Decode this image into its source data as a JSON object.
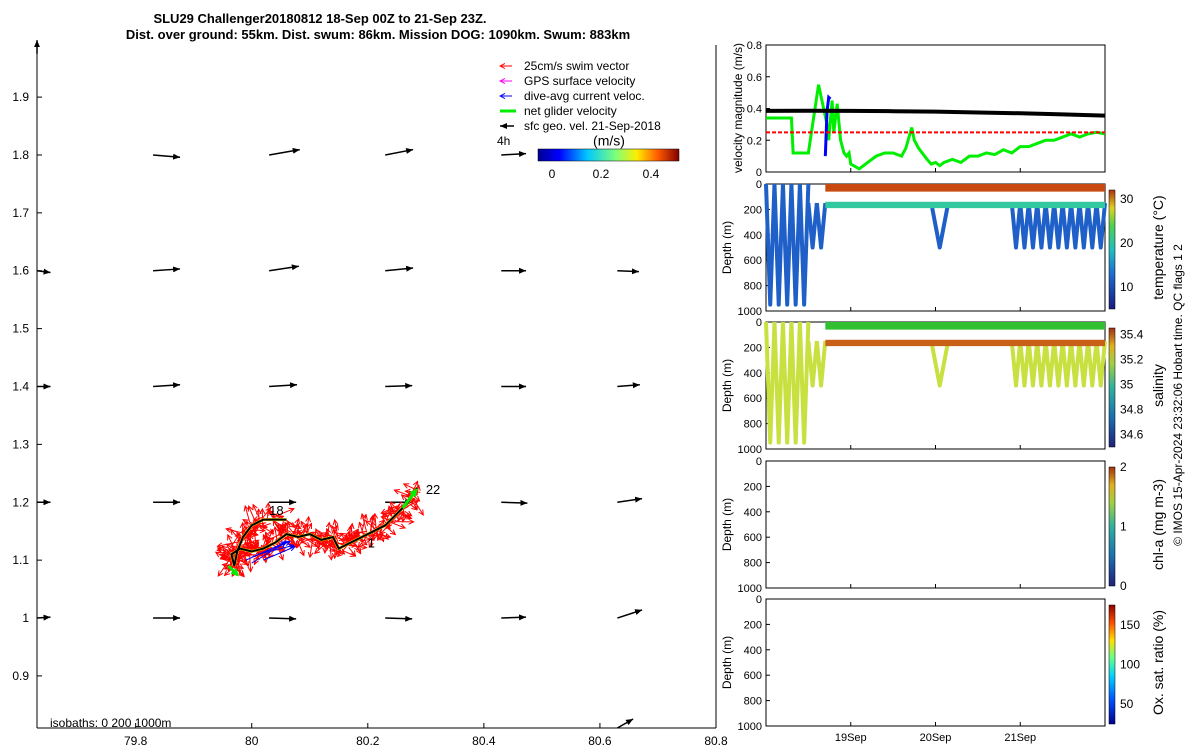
{
  "title": {
    "line1": "SLU29 Challenger20180812 18-Sep 00Z to 21-Sep 23Z.",
    "line2": "Dist. over ground: 55km. Dist. swum: 86km. Mission DOG: 1090km. Swum: 883km"
  },
  "credit": "© IMOS 15-Apr-2024 23:32:06 Hobart time. QC flags 1  2",
  "colors": {
    "swim": "#ff0000",
    "gps": "#ff00ff",
    "current": "#0000ff",
    "net": "#00ee00",
    "geo": "#000000",
    "track": "#000000",
    "track_seg": "#e8d000"
  },
  "chart_data": [
    {
      "id": "map",
      "type": "scatter",
      "x_ticks": [
        "79.8",
        "80",
        "80.2",
        "80.4",
        "80.6",
        "80.8"
      ],
      "y_ticks": [
        "0.9",
        "1",
        "1.1",
        "1.2",
        "1.3",
        "1.4",
        "1.5",
        "1.6",
        "1.7",
        "1.8",
        "1.9"
      ],
      "xlim": [
        79.63,
        80.8
      ],
      "ylim": [
        0.81,
        1.99
      ],
      "legend": {
        "placement": "top-right",
        "items": [
          "25cm/s swim vector",
          "GPS surface velocity",
          "dive-avg current veloc.",
          "net glider velocity",
          "sfc geo. vel. 21-Sep-2018"
        ],
        "extra": "4h",
        "colorbar_label": "(m/s)",
        "colorbar_ticks": [
          "0",
          "0.2",
          "0.4"
        ]
      },
      "isobaths_label": "isobaths: 0   200  1000m",
      "day_labels": [
        {
          "text": "18",
          "lon": 80.03,
          "lat": 1.178
        },
        {
          "text": "22",
          "lon": 80.3,
          "lat": 1.214
        },
        {
          "text": "1",
          "lon": 80.2,
          "lat": 1.122
        }
      ],
      "geo_vectors": [
        {
          "lon": 79.63,
          "lat": 1.975,
          "u": 0.0,
          "v": 0.3
        },
        {
          "lon": 79.83,
          "lat": 1.8,
          "u": 0.6,
          "v": -0.05
        },
        {
          "lon": 80.03,
          "lat": 1.8,
          "u": 0.68,
          "v": 0.12
        },
        {
          "lon": 80.23,
          "lat": 1.8,
          "u": 0.62,
          "v": 0.12
        },
        {
          "lon": 80.43,
          "lat": 1.8,
          "u": 0.55,
          "v": 0.03
        },
        {
          "lon": 79.63,
          "lat": 1.6,
          "u": 0.3,
          "v": -0.04
        },
        {
          "lon": 79.83,
          "lat": 1.6,
          "u": 0.6,
          "v": 0.04
        },
        {
          "lon": 80.03,
          "lat": 1.6,
          "u": 0.66,
          "v": 0.1
        },
        {
          "lon": 80.23,
          "lat": 1.6,
          "u": 0.62,
          "v": 0.06
        },
        {
          "lon": 80.43,
          "lat": 1.6,
          "u": 0.55,
          "v": 0.0
        },
        {
          "lon": 80.63,
          "lat": 1.6,
          "u": 0.48,
          "v": -0.02
        },
        {
          "lon": 79.63,
          "lat": 1.4,
          "u": 0.3,
          "v": 0.0
        },
        {
          "lon": 79.83,
          "lat": 1.4,
          "u": 0.6,
          "v": 0.04
        },
        {
          "lon": 80.03,
          "lat": 1.4,
          "u": 0.62,
          "v": 0.04
        },
        {
          "lon": 80.23,
          "lat": 1.4,
          "u": 0.6,
          "v": 0.02
        },
        {
          "lon": 80.43,
          "lat": 1.4,
          "u": 0.55,
          "v": 0.0
        },
        {
          "lon": 80.63,
          "lat": 1.4,
          "u": 0.5,
          "v": 0.04
        },
        {
          "lon": 79.63,
          "lat": 1.2,
          "u": 0.3,
          "v": 0.0
        },
        {
          "lon": 79.83,
          "lat": 1.2,
          "u": 0.6,
          "v": 0.0
        },
        {
          "lon": 80.03,
          "lat": 1.2,
          "u": 0.6,
          "v": 0.0
        },
        {
          "lon": 80.23,
          "lat": 1.2,
          "u": 0.6,
          "v": 0.0
        },
        {
          "lon": 80.43,
          "lat": 1.2,
          "u": 0.58,
          "v": -0.02
        },
        {
          "lon": 80.63,
          "lat": 1.2,
          "u": 0.55,
          "v": 0.08
        },
        {
          "lon": 79.63,
          "lat": 1.0,
          "u": 0.3,
          "v": 0.02
        },
        {
          "lon": 79.83,
          "lat": 1.0,
          "u": 0.6,
          "v": 0.0
        },
        {
          "lon": 80.03,
          "lat": 1.0,
          "u": 0.6,
          "v": -0.02
        },
        {
          "lon": 80.23,
          "lat": 1.0,
          "u": 0.6,
          "v": -0.02
        },
        {
          "lon": 80.43,
          "lat": 1.0,
          "u": 0.55,
          "v": 0.02
        },
        {
          "lon": 80.63,
          "lat": 1.0,
          "u": 0.55,
          "v": 0.18
        },
        {
          "lon": 80.63,
          "lat": 0.81,
          "u": 0.35,
          "v": 0.2
        }
      ],
      "track": [
        {
          "lon": 80.06,
          "lat": 1.17
        },
        {
          "lon": 80.02,
          "lat": 1.17
        },
        {
          "lon": 80.0,
          "lat": 1.16
        },
        {
          "lon": 79.985,
          "lat": 1.14
        },
        {
          "lon": 79.975,
          "lat": 1.115
        },
        {
          "lon": 79.97,
          "lat": 1.09
        },
        {
          "lon": 79.965,
          "lat": 1.11
        },
        {
          "lon": 79.98,
          "lat": 1.12
        },
        {
          "lon": 80.0,
          "lat": 1.115
        },
        {
          "lon": 80.02,
          "lat": 1.12
        },
        {
          "lon": 80.04,
          "lat": 1.13
        },
        {
          "lon": 80.06,
          "lat": 1.145
        },
        {
          "lon": 80.08,
          "lat": 1.14
        },
        {
          "lon": 80.1,
          "lat": 1.145
        },
        {
          "lon": 80.12,
          "lat": 1.135
        },
        {
          "lon": 80.14,
          "lat": 1.14
        },
        {
          "lon": 80.15,
          "lat": 1.12
        },
        {
          "lon": 80.17,
          "lat": 1.13
        },
        {
          "lon": 80.19,
          "lat": 1.14
        },
        {
          "lon": 80.21,
          "lat": 1.15
        },
        {
          "lon": 80.23,
          "lat": 1.16
        },
        {
          "lon": 80.25,
          "lat": 1.18
        },
        {
          "lon": 80.27,
          "lat": 1.2
        },
        {
          "lon": 80.285,
          "lat": 1.225
        }
      ],
      "net_velocity": [
        {
          "lon": 80.26,
          "lat": 1.19,
          "u": 0.3,
          "v": 0.4
        },
        {
          "lon": 79.96,
          "lat": 1.09,
          "u": 0.2,
          "v": -0.2
        }
      ],
      "current_vectors": [
        {
          "lon": 79.99,
          "lat": 1.1,
          "u": 0.9,
          "v": 0.4
        },
        {
          "lon": 80.0,
          "lat": 1.105,
          "u": 0.85,
          "v": 0.35
        },
        {
          "lon": 80.01,
          "lat": 1.11,
          "u": 0.8,
          "v": 0.2
        },
        {
          "lon": 80.02,
          "lat": 1.1,
          "u": 0.7,
          "v": 0.3
        },
        {
          "lon": 80.0,
          "lat": 1.095,
          "u": 0.75,
          "v": 0.45
        }
      ],
      "swim_vectors_note": "dense red arrows along track"
    },
    {
      "id": "velocity",
      "type": "line",
      "ylabel": "velocity magnitude (m/s)",
      "y_ticks": [
        "0",
        "0.2",
        "0.4",
        "0.6",
        "0.8"
      ],
      "ylim": [
        0,
        0.8
      ],
      "xlim": [
        0,
        4
      ],
      "x_tick_labels": [
        "19Sep",
        "20Sep",
        "21Sep"
      ],
      "x_tick_positions": [
        1,
        2,
        3
      ],
      "series": [
        {
          "color": "#00ee00",
          "x": [
            0,
            0.3,
            0.32,
            0.5,
            0.62,
            0.72,
            0.74,
            0.78,
            0.8,
            0.84,
            0.88,
            0.92,
            0.95,
            0.98,
            1.0,
            1.1,
            1.2,
            1.3,
            1.4,
            1.5,
            1.6,
            1.65,
            1.72,
            1.75,
            1.8,
            1.9,
            1.95,
            2.0,
            2.05,
            2.1,
            2.2,
            2.3,
            2.4,
            2.5,
            2.6,
            2.7,
            2.8,
            2.9,
            3.0,
            3.1,
            3.2,
            3.3,
            3.4,
            3.5,
            3.6,
            3.7,
            3.8,
            3.9,
            4.0
          ],
          "y": [
            0.34,
            0.34,
            0.12,
            0.12,
            0.55,
            0.3,
            0.2,
            0.45,
            0.25,
            0.43,
            0.2,
            0.12,
            0.1,
            0.12,
            0.05,
            0.02,
            0.06,
            0.1,
            0.12,
            0.12,
            0.1,
            0.15,
            0.28,
            0.2,
            0.15,
            0.08,
            0.05,
            0.06,
            0.04,
            0.06,
            0.08,
            0.06,
            0.1,
            0.1,
            0.12,
            0.11,
            0.14,
            0.12,
            0.16,
            0.16,
            0.18,
            0.2,
            0.2,
            0.22,
            0.24,
            0.22,
            0.24,
            0.25,
            0.24
          ]
        },
        {
          "color": "#0000ff",
          "x": [
            0.7,
            0.72,
            0.74,
            0.76
          ],
          "y": [
            0.1,
            0.38,
            0.47,
            0.46
          ]
        },
        {
          "color": "#000000",
          "x": [
            0,
            0.5,
            1.0,
            1.5,
            2.0,
            2.5,
            3.0,
            3.5,
            4.0
          ],
          "y": [
            0.385,
            0.386,
            0.385,
            0.383,
            0.38,
            0.375,
            0.37,
            0.363,
            0.355
          ]
        },
        {
          "color": "#ff0000",
          "dashed": true,
          "x": [
            0,
            4
          ],
          "y": [
            0.25,
            0.25
          ]
        }
      ]
    },
    {
      "id": "temperature",
      "type": "scatter",
      "ylabel": "Depth (m)",
      "cblabel": "temperature (°C)",
      "y_ticks": [
        "0",
        "200",
        "400",
        "600",
        "800",
        "1000"
      ],
      "cb_ticks": [
        "10",
        "20",
        "30"
      ],
      "ylim": [
        0,
        1000
      ],
      "clim": [
        5,
        32
      ]
    },
    {
      "id": "salinity",
      "type": "scatter",
      "ylabel": "Depth (m)",
      "cblabel": "salinity",
      "y_ticks": [
        "0",
        "200",
        "400",
        "600",
        "800",
        "1000"
      ],
      "cb_ticks": [
        "34.6",
        "34.8",
        "35",
        "35.2",
        "35.4"
      ],
      "ylim": [
        0,
        1000
      ],
      "clim": [
        34.5,
        35.45
      ]
    },
    {
      "id": "chla",
      "type": "scatter",
      "ylabel": "Depth (m)",
      "cblabel": "chl-a (mg m-3)",
      "y_ticks": [
        "0",
        "200",
        "400",
        "600",
        "800",
        "1000"
      ],
      "cb_ticks": [
        "0",
        "1",
        "2"
      ],
      "ylim": [
        0,
        1000
      ],
      "clim": [
        0,
        2
      ]
    },
    {
      "id": "oxygen",
      "type": "scatter",
      "ylabel": "Depth (m)",
      "cblabel": "Ox. sat. ratio (%)",
      "y_ticks": [
        "0",
        "200",
        "400",
        "600",
        "800",
        "1000"
      ],
      "cb_ticks": [
        "50",
        "100",
        "150"
      ],
      "ylim": [
        0,
        1000
      ],
      "clim": [
        25,
        175
      ]
    }
  ]
}
